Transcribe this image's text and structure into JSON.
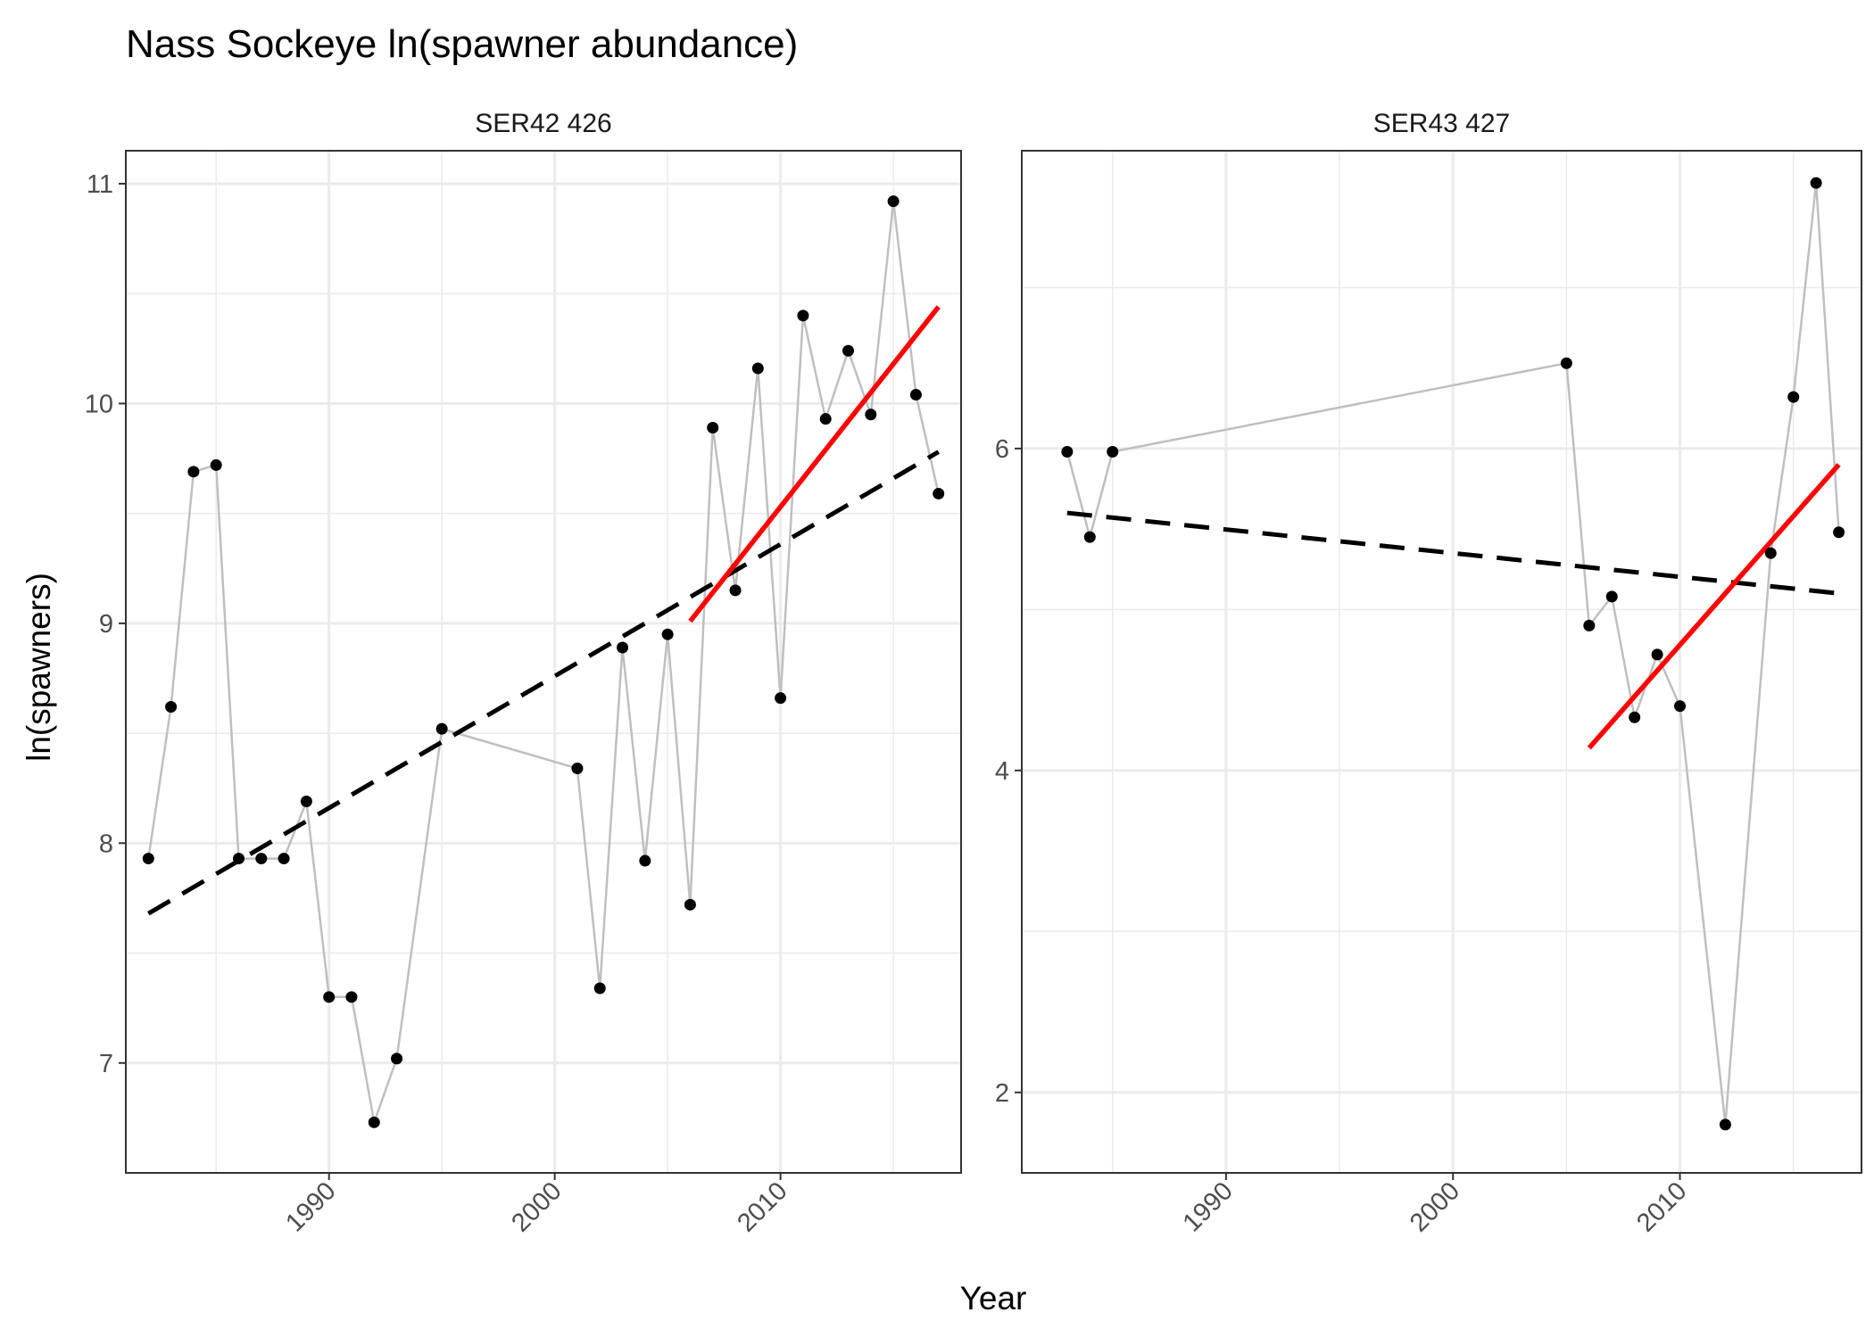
{
  "title": "Nass Sockeye ln(spawner abundance)",
  "xlabel": "Year",
  "ylabel": "ln(spawners)",
  "colors": {
    "points": "#000000",
    "connector": "#bfbfbf",
    "overall_trend": "#000000",
    "recent_trend": "#ff0000",
    "grid": "#ebebeb",
    "panel_border": "#333333"
  },
  "chart_data": [
    {
      "type": "line",
      "facet": "SER42 426",
      "xlim": [
        1981,
        2018
      ],
      "ylim": [
        6.5,
        11.15
      ],
      "x_ticks": [
        1990,
        2000,
        2010
      ],
      "x_tick_labels": [
        "1990",
        "2000",
        "2010"
      ],
      "y_ticks": [
        7,
        8,
        9,
        10,
        11
      ],
      "y_tick_labels": [
        "7",
        "8",
        "9",
        "10",
        "11"
      ],
      "points": [
        [
          1982,
          7.93
        ],
        [
          1983,
          8.62
        ],
        [
          1984,
          9.69
        ],
        [
          1985,
          9.72
        ],
        [
          1986,
          7.93
        ],
        [
          1987,
          7.93
        ],
        [
          1988,
          7.93
        ],
        [
          1989,
          8.19
        ],
        [
          1990,
          7.3
        ],
        [
          1991,
          7.3
        ],
        [
          1992,
          6.73
        ],
        [
          1993,
          7.02
        ],
        [
          1995,
          8.52
        ],
        [
          2001,
          8.34
        ],
        [
          2002,
          7.34
        ],
        [
          2003,
          8.89
        ],
        [
          2004,
          7.92
        ],
        [
          2005,
          8.95
        ],
        [
          2006,
          7.72
        ],
        [
          2007,
          9.89
        ],
        [
          2008,
          9.15
        ],
        [
          2009,
          10.16
        ],
        [
          2010,
          8.66
        ],
        [
          2011,
          10.4
        ],
        [
          2012,
          9.93
        ],
        [
          2013,
          10.24
        ],
        [
          2014,
          9.95
        ],
        [
          2015,
          10.92
        ],
        [
          2016,
          10.04
        ],
        [
          2017,
          9.59
        ]
      ],
      "overall_trend": [
        [
          1982,
          7.68
        ],
        [
          2017,
          9.78
        ]
      ],
      "recent_trend": [
        [
          2006,
          9.01
        ],
        [
          2017,
          10.44
        ]
      ]
    },
    {
      "type": "line",
      "facet": "SER43 427",
      "xlim": [
        1981,
        2018
      ],
      "ylim": [
        1.5,
        7.85
      ],
      "x_ticks": [
        1990,
        2000,
        2010
      ],
      "x_tick_labels": [
        "1990",
        "2000",
        "2010"
      ],
      "y_ticks": [
        2,
        4,
        6
      ],
      "y_tick_labels": [
        "2",
        "4",
        "6"
      ],
      "points": [
        [
          1983,
          5.98
        ],
        [
          1984,
          5.45
        ],
        [
          1985,
          5.98
        ],
        [
          2005,
          6.53
        ],
        [
          2006,
          4.9
        ],
        [
          2007,
          5.08
        ],
        [
          2008,
          4.33
        ],
        [
          2009,
          4.72
        ],
        [
          2010,
          4.4
        ],
        [
          2012,
          1.8
        ],
        [
          2014,
          5.35
        ],
        [
          2015,
          6.32
        ],
        [
          2016,
          7.65
        ],
        [
          2017,
          5.48
        ]
      ],
      "overall_trend": [
        [
          1983,
          5.6
        ],
        [
          2017,
          5.1
        ]
      ],
      "recent_trend": [
        [
          2006,
          4.14
        ],
        [
          2017,
          5.9
        ]
      ]
    }
  ]
}
